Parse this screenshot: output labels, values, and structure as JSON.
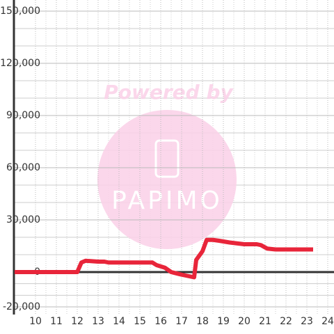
{
  "chart_data": {
    "type": "line",
    "watermark": {
      "top": "Powered by",
      "brand": "PAPIMO"
    },
    "xlim": [
      9,
      24.3
    ],
    "ylim": [
      -20000,
      150000
    ],
    "xticks": [
      10,
      11,
      12,
      13,
      14,
      15,
      16,
      17,
      18,
      19,
      20,
      21,
      22,
      23,
      24
    ],
    "yticks": [
      {
        "value": -20000,
        "label": "-20,000"
      },
      0,
      {
        "value": 30000,
        "label": "30,000"
      },
      {
        "value": 60000,
        "label": "60,000"
      },
      {
        "value": 90000,
        "label": "90,000"
      },
      {
        "value": 120000,
        "label": "120,000"
      },
      {
        "value": 150000,
        "label": "150,000"
      }
    ],
    "grid": true,
    "series": [
      {
        "color": "#e8253a",
        "x": [
          9,
          12,
          12.2,
          12.4,
          13,
          13.3,
          13.5,
          14,
          15,
          15.6,
          15.8,
          16.2,
          16.5,
          17,
          17.4,
          17.6,
          17.7,
          18,
          18.2,
          18.5,
          18.8,
          19.3,
          20,
          20.6,
          20.8,
          21.1,
          21.5,
          23.3
        ],
        "values": [
          0,
          0,
          5500,
          6500,
          6000,
          6000,
          5500,
          5500,
          5500,
          5500,
          4000,
          2500,
          0,
          -1500,
          -2500,
          -3000,
          7000,
          12000,
          18500,
          18500,
          18000,
          17000,
          16000,
          16000,
          15500,
          13500,
          13000,
          13000
        ]
      }
    ]
  }
}
